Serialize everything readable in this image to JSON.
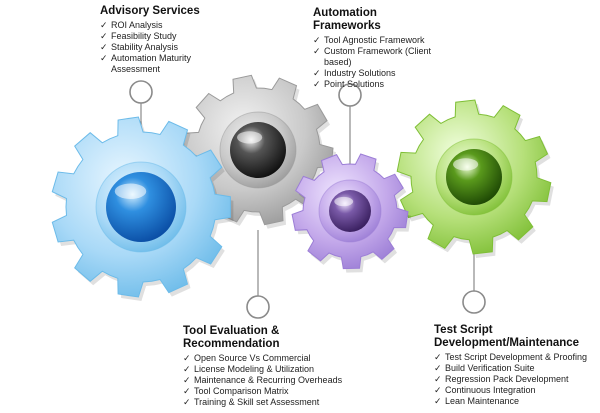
{
  "sections": {
    "advisory": {
      "title": "Advisory Services",
      "items": [
        "ROI Analysis",
        "Feasibility Study",
        "Stability Analysis",
        "Automation Maturity Assessment"
      ],
      "gear_color": "#5fb3ea"
    },
    "frameworks": {
      "title": "Automation Frameworks",
      "items": [
        "Tool Agnostic Framework",
        "Custom Framework (Client based)",
        "Industry Solutions",
        "Point Solutions"
      ],
      "gear_color": "#b59ae0"
    },
    "tool_eval": {
      "title": "Tool Evaluation & Recommendation",
      "items": [
        "Open Source Vs Commercial",
        "License Modeling & Utilization",
        "Maintenance & Recurring Overheads",
        "Tool Comparison Matrix",
        "Training & Skill set Assessment"
      ],
      "gear_color": "#bdbdbd"
    },
    "test_script": {
      "title": "Test Script Development/Maintenance",
      "items": [
        "Test Script Development & Proofing",
        "Build Verification Suite",
        "Regression Pack Development",
        "Continuous Integration",
        "Lean Maintenance"
      ],
      "gear_color": "#9fd15a"
    }
  },
  "colors": {
    "check": "#333333",
    "connector": "#8a8a8a"
  },
  "icons": {
    "bullet": "check-icon"
  }
}
